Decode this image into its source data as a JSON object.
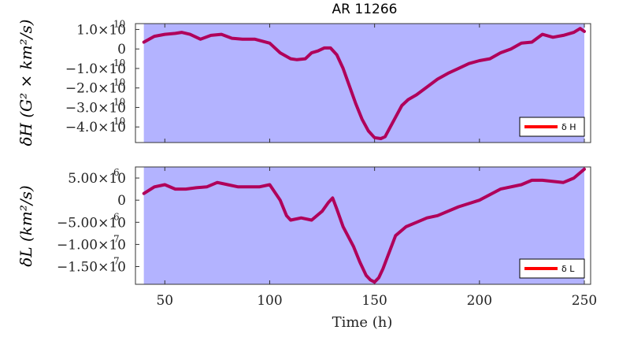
{
  "colors": {
    "background": "#ffffff",
    "panel_fill": "#b3b3ff",
    "series_line": "#b0005a",
    "legend_line": "#ff0000",
    "axis": "#333333"
  },
  "chart_data": [
    {
      "type": "line",
      "title": "AR 11266",
      "ylabel": "δH (G² × km²/s)",
      "xlim": [
        36,
        253
      ],
      "ylim": [
        -48000000000.0,
        13000000000.0
      ],
      "shaded_x_range": [
        40,
        250
      ],
      "yticks": [
        {
          "value": 10000000000.0,
          "label": "1.0×10",
          "exp": "10"
        },
        {
          "value": 0,
          "label": "0",
          "exp": ""
        },
        {
          "value": -10000000000.0,
          "label": "−1.0×10",
          "exp": "10"
        },
        {
          "value": -20000000000.0,
          "label": "−2.0×10",
          "exp": "10"
        },
        {
          "value": -30000000000.0,
          "label": "−3.0×10",
          "exp": "10"
        },
        {
          "value": -40000000000.0,
          "label": "−4.0×10",
          "exp": "10"
        }
      ],
      "legend": {
        "label": "δ H",
        "position": "bottom-right"
      },
      "series": [
        {
          "name": "δ H",
          "x": [
            40,
            45,
            50,
            55,
            58,
            62,
            67,
            72,
            77,
            82,
            87,
            93,
            100,
            105,
            110,
            113,
            117,
            120,
            123,
            126,
            129,
            132,
            135,
            138,
            141,
            144,
            147,
            150,
            153,
            155,
            157,
            160,
            163,
            166,
            170,
            175,
            180,
            185,
            190,
            195,
            200,
            205,
            210,
            215,
            220,
            225,
            230,
            235,
            240,
            245,
            248,
            250
          ],
          "y": [
            3500000000.0,
            6500000000.0,
            7500000000.0,
            8000000000.0,
            8500000000.0,
            7500000000.0,
            5000000000.0,
            7000000000.0,
            7500000000.0,
            5500000000.0,
            5000000000.0,
            5000000000.0,
            3000000000.0,
            -2000000000.0,
            -5000000000.0,
            -5500000000.0,
            -5000000000.0,
            -2000000000.0,
            -1000000000.0,
            500000000.0,
            500000000.0,
            -3000000000.0,
            -10000000000.0,
            -19000000000.0,
            -28000000000.0,
            -36000000000.0,
            -42000000000.0,
            -45500000000.0,
            -46000000000.0,
            -45000000000.0,
            -41000000000.0,
            -35000000000.0,
            -29000000000.0,
            -26000000000.0,
            -23500000000.0,
            -19500000000.0,
            -15500000000.0,
            -12500000000.0,
            -10000000000.0,
            -7500000000.0,
            -6000000000.0,
            -5000000000.0,
            -2000000000.0,
            0.0,
            3000000000.0,
            3500000000.0,
            7500000000.0,
            6000000000.0,
            7000000000.0,
            8500000000.0,
            10500000000.0,
            9000000000.0
          ]
        }
      ]
    },
    {
      "type": "line",
      "title": "",
      "xlabel": "Time (h)",
      "ylabel": "δL (km²/s)",
      "xlim": [
        36,
        253
      ],
      "ylim": [
        -19000000.0,
        7500000.0
      ],
      "shaded_x_range": [
        40,
        250
      ],
      "xticks": [
        50,
        100,
        150,
        200,
        250
      ],
      "yticks": [
        {
          "value": 5000000.0,
          "label": "5.00×10",
          "exp": "6"
        },
        {
          "value": 0,
          "label": "0",
          "exp": ""
        },
        {
          "value": -5000000.0,
          "label": "−5.00×10",
          "exp": "6"
        },
        {
          "value": -10000000.0,
          "label": "−1.00×10",
          "exp": "7"
        },
        {
          "value": -15000000.0,
          "label": "−1.50×10",
          "exp": "7"
        }
      ],
      "legend": {
        "label": "δ L",
        "position": "bottom-right"
      },
      "series": [
        {
          "name": "δ L",
          "x": [
            40,
            45,
            50,
            55,
            60,
            65,
            70,
            75,
            80,
            85,
            90,
            95,
            100,
            105,
            108,
            110,
            115,
            120,
            125,
            128,
            130,
            132,
            135,
            140,
            143,
            146,
            148,
            150,
            152,
            154,
            156,
            158,
            160,
            165,
            170,
            175,
            180,
            190,
            200,
            210,
            220,
            225,
            230,
            240,
            245,
            250
          ],
          "y": [
            1500000.0,
            3000000.0,
            3500000.0,
            2500000.0,
            2500000.0,
            2800000.0,
            3000000.0,
            4000000.0,
            3500000.0,
            3000000.0,
            3000000.0,
            3000000.0,
            3500000.0,
            0.0,
            -3500000.0,
            -4500000.0,
            -4000000.0,
            -4500000.0,
            -2500000.0,
            -500000.0,
            500000.0,
            -2000000.0,
            -6000000.0,
            -10500000.0,
            -14000000.0,
            -17000000.0,
            -18000000.0,
            -18500000.0,
            -17500000.0,
            -15500000.0,
            -13000000.0,
            -10500000.0,
            -8000000.0,
            -6000000.0,
            -5000000.0,
            -4000000.0,
            -3500000.0,
            -1500000.0,
            0.0,
            2500000.0,
            3500000.0,
            4500000.0,
            4500000.0,
            4000000.0,
            5000000.0,
            7000000.0
          ]
        }
      ]
    }
  ]
}
